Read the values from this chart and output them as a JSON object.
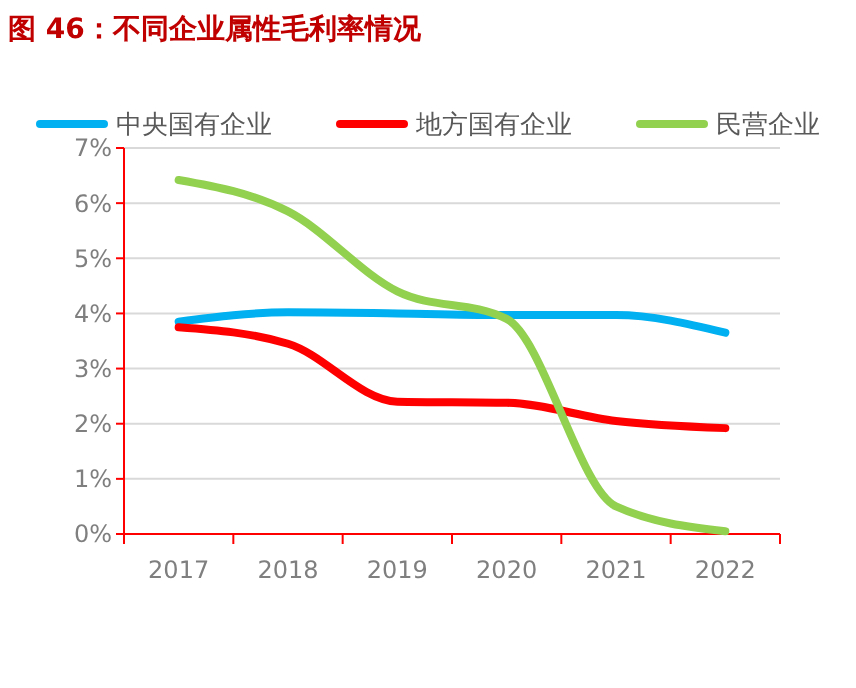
{
  "chart_data": {
    "type": "line",
    "title": "图 46：不同企业属性毛利率情况",
    "categories": [
      "2017",
      "2018",
      "2019",
      "2020",
      "2021",
      "2022"
    ],
    "series": [
      {
        "name": "中央国有企业",
        "color": "#00b0f0",
        "values": [
          3.85,
          4.02,
          4.0,
          3.97,
          3.97,
          3.65
        ]
      },
      {
        "name": "地方国有企业",
        "color": "#ff0000",
        "values": [
          3.75,
          3.45,
          2.4,
          2.38,
          2.05,
          1.92
        ]
      },
      {
        "name": "民营企业",
        "color": "#92d050",
        "values": [
          6.42,
          5.85,
          4.4,
          3.9,
          0.5,
          0.05
        ]
      }
    ],
    "ylim": [
      0,
      7
    ],
    "yticks": [
      {
        "value": 0,
        "label": "0%"
      },
      {
        "value": 1,
        "label": "1%"
      },
      {
        "value": 2,
        "label": "2%"
      },
      {
        "value": 3,
        "label": "3%"
      },
      {
        "value": 4,
        "label": "4%"
      },
      {
        "value": 5,
        "label": "5%"
      },
      {
        "value": 6,
        "label": "6%"
      },
      {
        "value": 7,
        "label": "7%"
      }
    ],
    "grid": "y",
    "legend": "top",
    "marker": "none",
    "line_style": "solid"
  }
}
